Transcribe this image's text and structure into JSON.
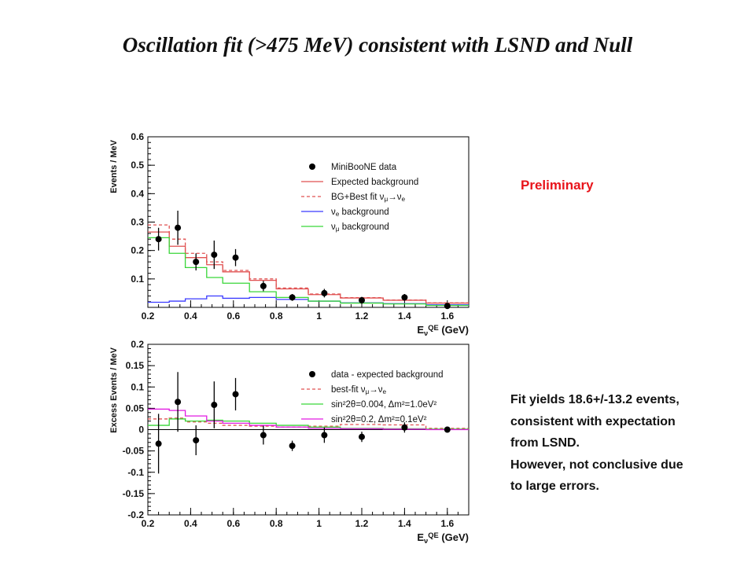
{
  "slide": {
    "title": "Oscillation fit (>475 MeV) consistent with LSND and Null",
    "preliminary_label": "Preliminary",
    "notes": [
      "Fit yields 18.6+/-13.2 events,",
      "consistent with expectation",
      "from LSND.",
      "However, not conclusive due",
      "to large errors."
    ]
  },
  "chart_data": [
    {
      "type": "line",
      "ylabel": "Events / MeV",
      "xlabel": "E_ν^QE (GeV)",
      "xlim": [
        0.2,
        1.7
      ],
      "ylim": [
        0,
        0.6
      ],
      "xticks": [
        0.2,
        0.4,
        0.6,
        0.8,
        1,
        1.2,
        1.4,
        1.6
      ],
      "yticks": [
        0.1,
        0.2,
        0.3,
        0.4,
        0.5,
        0.6
      ],
      "ytick_labels": [
        "0.1",
        "0.2",
        "0.3",
        "0.4",
        "0.5",
        "0.6"
      ],
      "bin_edges": [
        0.2,
        0.3,
        0.375,
        0.475,
        0.55,
        0.675,
        0.8,
        0.95,
        1.1,
        1.3,
        1.5,
        1.7
      ],
      "series": [
        {
          "name": "MiniBooNE data",
          "kind": "points",
          "color": "#000000",
          "x": [
            0.25,
            0.34,
            0.425,
            0.51,
            0.61,
            0.74,
            0.875,
            1.025,
            1.2,
            1.4,
            1.6
          ],
          "y": [
            0.24,
            0.28,
            0.16,
            0.185,
            0.175,
            0.075,
            0.035,
            0.05,
            0.025,
            0.035,
            0.005
          ],
          "err": [
            0.04,
            0.06,
            0.03,
            0.05,
            0.03,
            0.018,
            0.012,
            0.015,
            0.012,
            0.012,
            0.005
          ]
        },
        {
          "name": "Expected background",
          "kind": "step",
          "color": "#e05050",
          "dash": false,
          "values": [
            0.265,
            0.215,
            0.175,
            0.15,
            0.125,
            0.095,
            0.065,
            0.045,
            0.033,
            0.025,
            0.015
          ]
        },
        {
          "name": "BG+Best fit ν_μ→ν_e",
          "kind": "step",
          "color": "#e05050",
          "dash": true,
          "values": [
            0.29,
            0.24,
            0.19,
            0.16,
            0.13,
            0.1,
            0.068,
            0.047,
            0.034,
            0.026,
            0.016
          ]
        },
        {
          "name": "ν_e background",
          "kind": "step",
          "color": "#3a3aff",
          "dash": false,
          "values": [
            0.018,
            0.022,
            0.03,
            0.04,
            0.032,
            0.035,
            0.028,
            0.022,
            0.016,
            0.013,
            0.009
          ]
        },
        {
          "name": "ν_μ background",
          "kind": "step",
          "color": "#39d639",
          "dash": false,
          "values": [
            0.245,
            0.19,
            0.14,
            0.105,
            0.085,
            0.055,
            0.035,
            0.022,
            0.015,
            0.012,
            0.007
          ]
        }
      ],
      "legend_position": "top-right"
    },
    {
      "type": "line",
      "ylabel": "Excess Events / MeV",
      "xlabel": "E_ν^QE (GeV)",
      "xlim": [
        0.2,
        1.7
      ],
      "ylim": [
        -0.2,
        0.2
      ],
      "xticks": [
        0.2,
        0.4,
        0.6,
        0.8,
        1,
        1.2,
        1.4,
        1.6
      ],
      "yticks": [
        -0.2,
        -0.15,
        -0.1,
        -0.05,
        0,
        0.05,
        0.1,
        0.15,
        0.2
      ],
      "ytick_labels": [
        "-0.2",
        "-0.15",
        "-0.1",
        "-0.05",
        "0",
        "0.05",
        "0.1",
        "0.15",
        "0.2"
      ],
      "bin_edges": [
        0.2,
        0.3,
        0.375,
        0.475,
        0.55,
        0.675,
        0.8,
        0.95,
        1.1,
        1.3,
        1.5,
        1.7
      ],
      "series": [
        {
          "name": "data - expected background",
          "kind": "points",
          "color": "#000000",
          "x": [
            0.25,
            0.34,
            0.425,
            0.51,
            0.61,
            0.74,
            0.875,
            1.025,
            1.2,
            1.4,
            1.6
          ],
          "y": [
            -0.033,
            0.065,
            -0.025,
            0.058,
            0.083,
            -0.013,
            -0.038,
            -0.013,
            -0.017,
            0.005,
            0.0
          ],
          "err": [
            0.07,
            0.07,
            0.035,
            0.055,
            0.038,
            0.022,
            0.012,
            0.018,
            0.012,
            0.012,
            0.003
          ]
        },
        {
          "name": "best-fit ν_μ→ν_e",
          "kind": "step",
          "color": "#e05050",
          "dash": true,
          "values": [
            0.025,
            0.027,
            0.018,
            0.015,
            0.01,
            0.008,
            0.006,
            0.008,
            0.012,
            0.011,
            0.003
          ]
        },
        {
          "name": "sin²2θ=0.004, Δm²=1.0eV²",
          "kind": "step",
          "color": "#39d639",
          "dash": false,
          "values": [
            0.01,
            0.025,
            0.02,
            0.022,
            0.02,
            0.015,
            0.01,
            0.006,
            0.003,
            0.002,
            0.001
          ]
        },
        {
          "name": "sin²2θ=0.2, Δm²=0.1eV²",
          "kind": "step",
          "color": "#e21ae2",
          "dash": false,
          "values": [
            0.048,
            0.045,
            0.032,
            0.02,
            0.015,
            0.01,
            0.006,
            0.003,
            0.002,
            0.001,
            0.0
          ]
        }
      ],
      "legend_position": "top-right"
    }
  ]
}
